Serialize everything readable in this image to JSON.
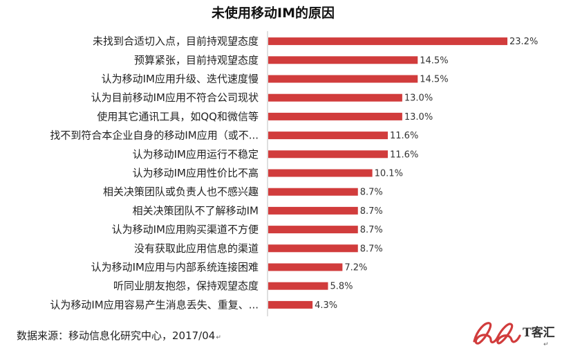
{
  "chart_data": {
    "type": "bar",
    "orientation": "horizontal",
    "title": "未使用移动IM的原因",
    "categories": [
      "未找到合适切入点，目前持观望态度",
      "预算紧张，目前持观望态度",
      "认为移动IM应用升级、迭代速度慢",
      "认为目前移动IM应用不符合公司现状",
      "使用其它通讯工具，如QQ和微信等",
      "找不到符合本企业自身的移动IM应用（或不...",
      "认为移动IM应用运行不稳定",
      "认为移动IM应用性价比不高",
      "相关决策团队或负责人也不感兴趣",
      "相关决策团队不了解移动IM",
      "认为移动IM应用购买渠道不方便",
      "没有获取此应用信息的渠道",
      "认为移动IM应用与内部系统连接困难",
      "听同业朋友抱怨，保持观望态度",
      "认为移动IM应用容易产生消息丢失、重复、..."
    ],
    "values": [
      23.2,
      14.5,
      14.5,
      13.0,
      13.0,
      11.6,
      11.6,
      10.1,
      8.7,
      8.7,
      8.7,
      8.7,
      7.2,
      5.8,
      4.3
    ],
    "data_labels": [
      "23.2%",
      "14.5%",
      "14.5%",
      "13.0%",
      "13.0%",
      "11.6%",
      "11.6%",
      "10.1%",
      "8.7%",
      "8.7%",
      "8.7%",
      "8.7%",
      "7.2%",
      "5.8%",
      "4.3%"
    ],
    "unit": "%",
    "xlim": [
      0,
      23.2
    ],
    "grid": false,
    "legend": "none",
    "bar_color": "#d13c3c"
  },
  "source_note": "数据来源：移动信息化研究中心，2017/04",
  "return_mark": "↵",
  "logo": {
    "text": "T客汇",
    "mark": "↵"
  }
}
